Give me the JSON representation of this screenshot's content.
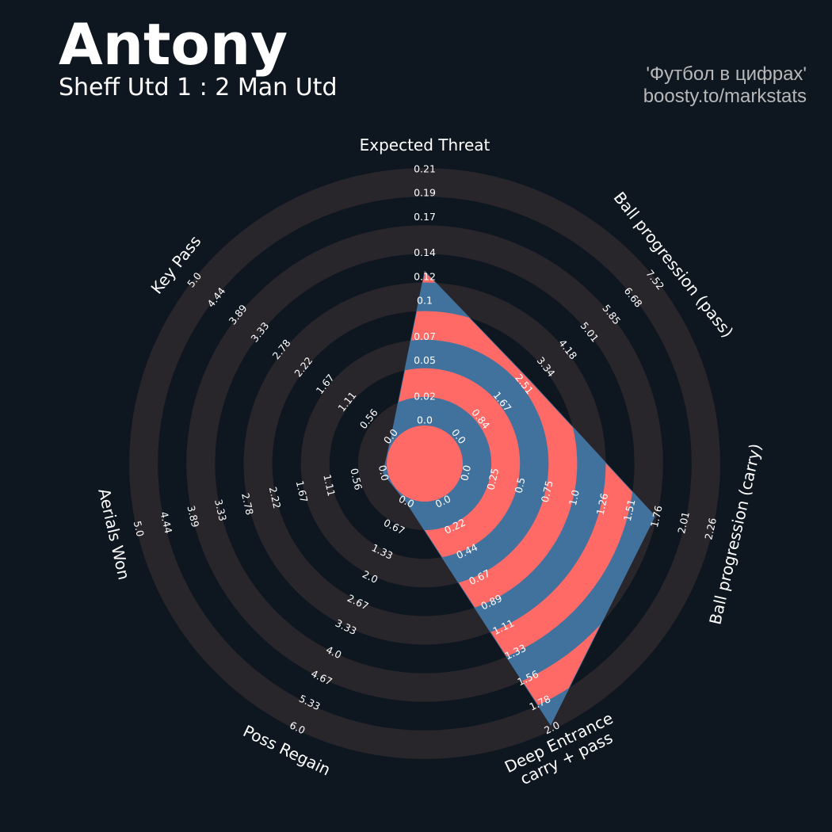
{
  "chart_data": {
    "type": "radar",
    "title": "Antony",
    "subtitle": "Sheff Utd 1 : 2 Man Utd",
    "credits": [
      "'Футбол в цифрах'",
      "boosty.to/markstats"
    ],
    "categories": [
      "Expected Threat",
      "Ball progression (pass)",
      "Ball progression (carry)",
      "Deep Entrance\ncarry + pass",
      "Poss Regain",
      "Aerials Won",
      "Key Pass"
    ],
    "values": [
      0.125,
      2.73,
      1.74,
      1.97,
      0,
      0,
      0
    ],
    "colors": {
      "background": "#0e171f",
      "ring": "#28252b",
      "fill": "#41729e",
      "fill_alt": "#ff6a67"
    },
    "axes": [
      {
        "lim": [
          0,
          0.21
        ],
        "ticks": [
          {
            "value": 0,
            "label": "0.0"
          },
          0.02,
          0.05,
          0.07,
          0.1,
          0.12,
          0.14,
          0.17,
          0.19,
          0.21
        ]
      },
      {
        "lim": [
          0,
          7.52
        ],
        "ticks": [
          {
            "value": 0,
            "label": "0.0"
          },
          0.84,
          1.67,
          2.51,
          3.34,
          4.18,
          5.01,
          5.85,
          6.68,
          7.52
        ]
      },
      {
        "lim": [
          0,
          2.26
        ],
        "ticks": [
          {
            "value": 0,
            "label": "0.0"
          },
          0.25,
          0.5,
          0.75,
          {
            "value": 1,
            "label": "1.0"
          },
          1.26,
          1.51,
          1.76,
          2.01,
          2.26
        ]
      },
      {
        "lim": [
          0,
          2
        ],
        "ticks": [
          {
            "value": 0,
            "label": "0.0"
          },
          0.22,
          0.44,
          0.67,
          0.89,
          1.11,
          1.33,
          1.56,
          1.78,
          {
            "value": 2,
            "label": "2.0"
          }
        ]
      },
      {
        "lim": [
          0,
          6
        ],
        "ticks": [
          {
            "value": 0,
            "label": "0.0"
          },
          0.67,
          1.33,
          {
            "value": 2,
            "label": "2.0"
          },
          2.67,
          3.33,
          {
            "value": 4,
            "label": "4.0"
          },
          4.67,
          5.33,
          {
            "value": 6,
            "label": "6.0"
          }
        ]
      },
      {
        "lim": [
          0,
          5
        ],
        "ticks": [
          {
            "value": 0,
            "label": "0.0"
          },
          0.56,
          1.11,
          1.67,
          2.22,
          2.78,
          3.33,
          3.89,
          4.44,
          {
            "value": 5,
            "label": "5.0"
          }
        ]
      },
      {
        "lim": [
          0,
          5
        ],
        "ticks": [
          {
            "value": 0,
            "label": "0.0"
          },
          0.56,
          1.11,
          1.67,
          2.22,
          2.78,
          3.33,
          3.89,
          4.44,
          {
            "value": 5,
            "label": "5.0"
          }
        ]
      }
    ]
  }
}
